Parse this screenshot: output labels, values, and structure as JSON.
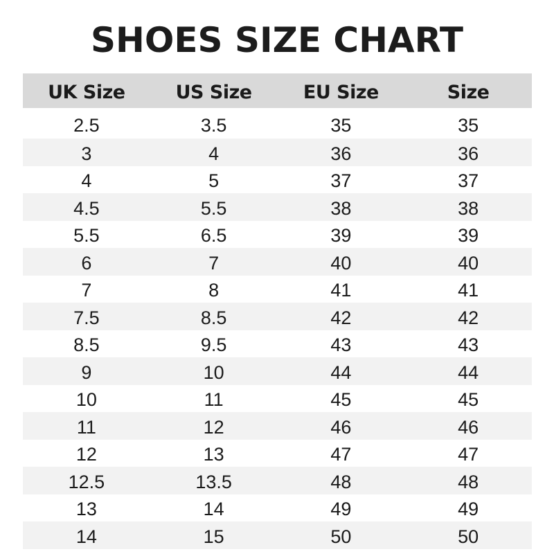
{
  "title": "SHOES SIZE CHART",
  "columns": [
    "UK Size",
    "US Size",
    "EU Size",
    "Size"
  ],
  "rows": [
    [
      "2.5",
      "3.5",
      "35",
      "35"
    ],
    [
      "3",
      "4",
      "36",
      "36"
    ],
    [
      "4",
      "5",
      "37",
      "37"
    ],
    [
      "4.5",
      "5.5",
      "38",
      "38"
    ],
    [
      "5.5",
      "6.5",
      "39",
      "39"
    ],
    [
      "6",
      "7",
      "40",
      "40"
    ],
    [
      "7",
      "8",
      "41",
      "41"
    ],
    [
      "7.5",
      "8.5",
      "42",
      "42"
    ],
    [
      "8.5",
      "9.5",
      "43",
      "43"
    ],
    [
      "9",
      "10",
      "44",
      "44"
    ],
    [
      "10",
      "11",
      "45",
      "45"
    ],
    [
      "11",
      "12",
      "46",
      "46"
    ],
    [
      "12",
      "13",
      "47",
      "47"
    ],
    [
      "12.5",
      "13.5",
      "48",
      "48"
    ],
    [
      "13",
      "14",
      "49",
      "49"
    ],
    [
      "14",
      "15",
      "50",
      "50"
    ]
  ],
  "colors": {
    "header_bg": "#d9d9d9",
    "stripe_bg": "#f2f2f2",
    "text": "#1a1a1a"
  }
}
